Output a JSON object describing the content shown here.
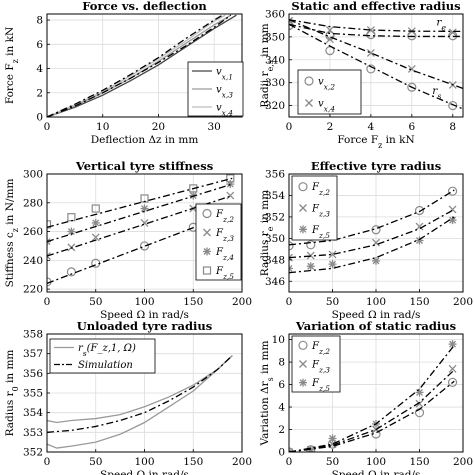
{
  "chart_data": [
    {
      "id": "p1",
      "type": "line",
      "title": "Force vs. deflection",
      "xlabel": "Deflection Δz in mm",
      "ylabel": "Force F_z in kN",
      "xlim": [
        0,
        35
      ],
      "ylim": [
        0,
        8.5
      ],
      "xticks": [
        0,
        10,
        20,
        30
      ],
      "yticks": [
        0,
        2,
        4,
        6,
        8
      ],
      "grid": true,
      "legend": "bottom-right",
      "series": [
        {
          "name": "v_x,1",
          "style": "solid",
          "color": "#444444",
          "x": [
            0,
            5,
            10,
            15,
            20,
            25,
            30,
            34
          ],
          "y": [
            0,
            0.8,
            1.8,
            3.0,
            4.3,
            5.8,
            7.3,
            8.4
          ]
        },
        {
          "name": "v_x,3",
          "style": "solid",
          "color": "#9a9a9a",
          "x": [
            0,
            5,
            10,
            15,
            20,
            25,
            30,
            33
          ],
          "y": [
            0,
            0.9,
            2.0,
            3.2,
            4.6,
            6.1,
            7.6,
            8.4
          ]
        },
        {
          "name": "v_x,4",
          "style": "solid",
          "color": "#bdbdbd",
          "x": [
            0,
            5,
            10,
            15,
            20,
            25,
            30,
            32
          ],
          "y": [
            0,
            1.0,
            2.1,
            3.4,
            4.8,
            6.3,
            7.9,
            8.4
          ]
        },
        {
          "name": "",
          "style": "dashdot",
          "color": "#000000",
          "x": [
            0,
            5,
            10,
            15,
            20,
            25,
            30,
            33
          ],
          "y": [
            0,
            0.9,
            2.0,
            3.2,
            4.5,
            5.9,
            7.4,
            8.4
          ]
        },
        {
          "name": "",
          "style": "dashdot",
          "color": "#000000",
          "x": [
            0,
            5,
            10,
            15,
            20,
            25,
            30,
            31.5
          ],
          "y": [
            0,
            1.05,
            2.2,
            3.5,
            4.9,
            6.5,
            8.0,
            8.4
          ]
        }
      ]
    },
    {
      "id": "p2",
      "type": "scatter",
      "title": "Static and effective radius",
      "xlabel": "Force F_z in kN",
      "ylabel": "Radii r_e,s in mm",
      "xlim": [
        0,
        8.5
      ],
      "ylim": [
        315,
        360
      ],
      "xticks": [
        0,
        2,
        4,
        6,
        8
      ],
      "yticks": [
        320,
        330,
        340,
        350,
        360
      ],
      "grid": true,
      "legend": "bottom-right",
      "annotations": [
        {
          "text": "r_e",
          "x": 7.2,
          "y": 355
        },
        {
          "text": "r_s",
          "x": 7.0,
          "y": 325
        }
      ],
      "series": [
        {
          "name": "v_x,2",
          "marker": "circle",
          "line": false,
          "x": [
            0,
            2,
            4,
            6,
            8
          ],
          "y": [
            355,
            350.5,
            351,
            350.5,
            350.5
          ]
        },
        {
          "name": "v_x,2",
          "marker": "circle",
          "line": false,
          "x": [
            0,
            2,
            4,
            6,
            8
          ],
          "y": [
            355,
            344,
            336,
            328,
            320
          ]
        },
        {
          "name": "v_x,4",
          "marker": "x",
          "line": false,
          "x": [
            0,
            2,
            4,
            6,
            8
          ],
          "y": [
            357,
            353,
            353,
            352.5,
            352
          ]
        },
        {
          "name": "v_x,4",
          "marker": "x",
          "line": false,
          "x": [
            0,
            2,
            4,
            6,
            8
          ],
          "y": [
            357,
            349,
            343,
            336,
            329
          ]
        },
        {
          "name": "",
          "style": "dashdot",
          "x": [
            0,
            2,
            4,
            6,
            8.5
          ],
          "y": [
            355.5,
            351.5,
            350.5,
            350.2,
            350.2
          ]
        },
        {
          "name": "",
          "style": "dashdot",
          "x": [
            0,
            2,
            4,
            6,
            8.5
          ],
          "y": [
            357.5,
            354.5,
            353,
            352.5,
            352.4
          ]
        },
        {
          "name": "",
          "style": "dashdot",
          "x": [
            0,
            2,
            4,
            6,
            8.5
          ],
          "y": [
            355.5,
            346,
            337,
            328,
            318.5
          ]
        },
        {
          "name": "",
          "style": "dashdot",
          "x": [
            0,
            2,
            4,
            6,
            8.5
          ],
          "y": [
            357.5,
            350,
            343,
            335.5,
            327.5
          ]
        }
      ]
    },
    {
      "id": "p3",
      "type": "scatter",
      "title": "Vertical tyre stiffness",
      "xlabel": "Speed Ω in rad/s",
      "ylabel": "Stiffness c_z in N/mm",
      "xlim": [
        0,
        200
      ],
      "ylim": [
        218,
        300
      ],
      "xticks": [
        0,
        50,
        100,
        150,
        200
      ],
      "yticks": [
        220,
        240,
        260,
        280,
        300
      ],
      "grid": true,
      "legend": "right",
      "series": [
        {
          "name": "F_z,2",
          "marker": "circle",
          "x": [
            0,
            25,
            50,
            100,
            150,
            188
          ],
          "y": [
            225,
            232,
            238,
            250,
            263,
            273
          ]
        },
        {
          "name": "F_z,3",
          "marker": "x",
          "x": [
            0,
            25,
            50,
            100,
            150,
            188
          ],
          "y": [
            243,
            249,
            256,
            266,
            276,
            285
          ]
        },
        {
          "name": "F_z,4",
          "marker": "asterisk",
          "x": [
            0,
            25,
            50,
            100,
            150,
            188
          ],
          "y": [
            253,
            260,
            266,
            276,
            285,
            293
          ]
        },
        {
          "name": "F_z,5",
          "marker": "square",
          "x": [
            0,
            25,
            50,
            100,
            150,
            188
          ],
          "y": [
            265,
            270,
            276,
            283,
            290,
            297
          ]
        },
        {
          "name": "",
          "style": "dashdot",
          "x": [
            0,
            190
          ],
          "y": [
            224,
            273
          ]
        },
        {
          "name": "",
          "style": "dashdot",
          "x": [
            0,
            190
          ],
          "y": [
            243,
            285
          ]
        },
        {
          "name": "",
          "style": "dashdot",
          "x": [
            0,
            190
          ],
          "y": [
            253,
            293
          ]
        },
        {
          "name": "",
          "style": "dashdot",
          "x": [
            0,
            190
          ],
          "y": [
            263,
            297
          ]
        }
      ]
    },
    {
      "id": "p4",
      "type": "scatter",
      "title": "Effective tyre radius",
      "xlabel": "Speed Ω in rad/s",
      "ylabel": "Radius r_e in mm",
      "xlim": [
        0,
        200
      ],
      "ylim": [
        345,
        356
      ],
      "xticks": [
        0,
        50,
        100,
        150,
        200
      ],
      "yticks": [
        346,
        348,
        350,
        352,
        354,
        356
      ],
      "grid": true,
      "legend": "top-left",
      "series": [
        {
          "name": "F_z,2",
          "marker": "circle",
          "x": [
            0,
            25,
            50,
            100,
            150,
            188
          ],
          "y": [
            349.3,
            349.4,
            350.3,
            350.8,
            352.6,
            354.4
          ]
        },
        {
          "name": "F_z,3",
          "marker": "x",
          "x": [
            0,
            25,
            50,
            100,
            150,
            188
          ],
          "y": [
            348.2,
            348.4,
            348.5,
            349.6,
            351.1,
            352.7
          ]
        },
        {
          "name": "F_z,5",
          "marker": "asterisk",
          "x": [
            0,
            25,
            50,
            100,
            150,
            188
          ],
          "y": [
            347.2,
            347.4,
            347.6,
            347.9,
            349.8,
            351.7
          ]
        },
        {
          "name": "",
          "style": "dashdot",
          "x": [
            0,
            50,
            100,
            150,
            190
          ],
          "y": [
            349.4,
            349.8,
            350.9,
            352.5,
            354.5
          ]
        },
        {
          "name": "",
          "style": "dashdot",
          "x": [
            0,
            50,
            100,
            150,
            190
          ],
          "y": [
            348.2,
            348.5,
            349.4,
            350.9,
            352.7
          ]
        },
        {
          "name": "",
          "style": "dashdot",
          "x": [
            0,
            50,
            100,
            150,
            190
          ],
          "y": [
            346.8,
            347.2,
            348.2,
            349.9,
            352.0
          ]
        }
      ]
    },
    {
      "id": "p5",
      "type": "line",
      "title": "Unloaded tyre radius",
      "xlabel": "Speed Ω in rad/s",
      "ylabel": "Radius r_0 in mm",
      "xlim": [
        0,
        200
      ],
      "ylim": [
        352,
        358
      ],
      "xticks": [
        0,
        50,
        100,
        150,
        200
      ],
      "yticks": [
        352,
        353,
        354,
        355,
        356,
        357,
        358
      ],
      "grid": true,
      "legend": "top-left",
      "series": [
        {
          "name": "r_s(F_z,1, Ω)",
          "style": "solid",
          "color": "#9a9a9a",
          "x": [
            0,
            10,
            25,
            50,
            75,
            100,
            125,
            150,
            175,
            190
          ],
          "y": [
            353.6,
            353.5,
            353.6,
            353.7,
            353.9,
            354.3,
            354.8,
            355.4,
            356.2,
            356.9
          ]
        },
        {
          "name": "",
          "style": "solid",
          "color": "#9a9a9a",
          "x": [
            0,
            10,
            25,
            50,
            75,
            100,
            125,
            150,
            175,
            190
          ],
          "y": [
            352.4,
            352.2,
            352.3,
            352.5,
            352.9,
            353.5,
            354.3,
            355.1,
            356.2,
            356.9
          ]
        },
        {
          "name": "Simulation",
          "style": "dashdot",
          "color": "#000000",
          "x": [
            0,
            25,
            50,
            75,
            100,
            125,
            150,
            175,
            190
          ],
          "y": [
            353.0,
            353.1,
            353.3,
            353.6,
            354.0,
            354.6,
            355.3,
            356.2,
            356.9
          ]
        }
      ]
    },
    {
      "id": "p6",
      "type": "scatter",
      "title": "Variation of static radius",
      "xlabel": "Speed Ω in rad/s",
      "ylabel": "Variation Δr_s in mm",
      "xlim": [
        0,
        200
      ],
      "ylim": [
        0,
        10.5
      ],
      "xticks": [
        0,
        50,
        100,
        150,
        200
      ],
      "yticks": [
        0,
        2,
        4,
        6,
        8,
        10
      ],
      "grid": true,
      "legend": "top-left",
      "series": [
        {
          "name": "F_z,2",
          "marker": "circle",
          "x": [
            0,
            25,
            50,
            100,
            150,
            188
          ],
          "y": [
            0,
            0.2,
            0.7,
            1.6,
            3.5,
            6.2
          ]
        },
        {
          "name": "F_z,3",
          "marker": "x",
          "x": [
            0,
            25,
            50,
            100,
            150,
            188
          ],
          "y": [
            0,
            0.2,
            0.7,
            2.0,
            4.3,
            7.4
          ]
        },
        {
          "name": "F_z,5",
          "marker": "asterisk",
          "x": [
            0,
            25,
            50,
            100,
            150,
            188
          ],
          "y": [
            0,
            0.2,
            1.2,
            2.5,
            5.3,
            9.6
          ]
        },
        {
          "name": "",
          "style": "dashdot",
          "x": [
            0,
            50,
            100,
            150,
            190
          ],
          "y": [
            0,
            0.5,
            1.7,
            3.8,
            6.3
          ]
        },
        {
          "name": "",
          "style": "dashdot",
          "x": [
            0,
            50,
            100,
            150,
            190
          ],
          "y": [
            0,
            0.6,
            2.0,
            4.4,
            7.3
          ]
        },
        {
          "name": "",
          "style": "dashdot",
          "x": [
            0,
            50,
            100,
            150,
            190
          ],
          "y": [
            0,
            0.7,
            2.5,
            5.6,
            9.5
          ]
        }
      ]
    }
  ]
}
